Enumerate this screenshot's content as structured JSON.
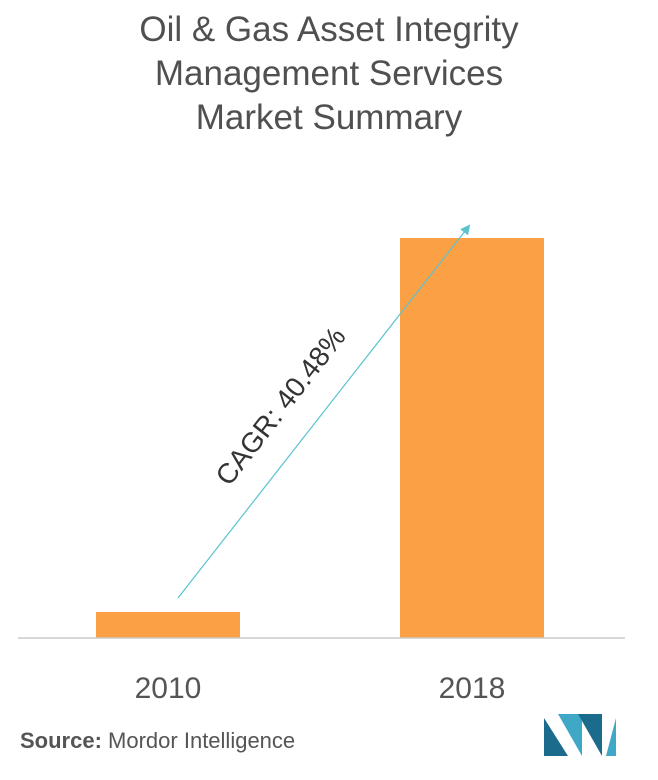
{
  "title": {
    "line1": "Oil & Gas Asset Integrity",
    "line2": "Management Services",
    "line3": "Market Summary"
  },
  "chart_data": {
    "type": "bar",
    "title": "Oil & Gas Asset Integrity Management Services Market Summary",
    "categories": [
      "2010",
      "2018"
    ],
    "values": [
      6.5,
      100
    ],
    "ylim": [
      0,
      100
    ],
    "grid": false,
    "legend": "none",
    "annotation": "CAGR: 40.48%",
    "bar_color": "#FBA044",
    "arrow_color": "#5BC3CE"
  },
  "source": {
    "label": "Source:",
    "text": "Mordor Intelligence"
  },
  "colors": {
    "logo_left": "#1B6B8C",
    "logo_right": "#3FA8C6"
  }
}
